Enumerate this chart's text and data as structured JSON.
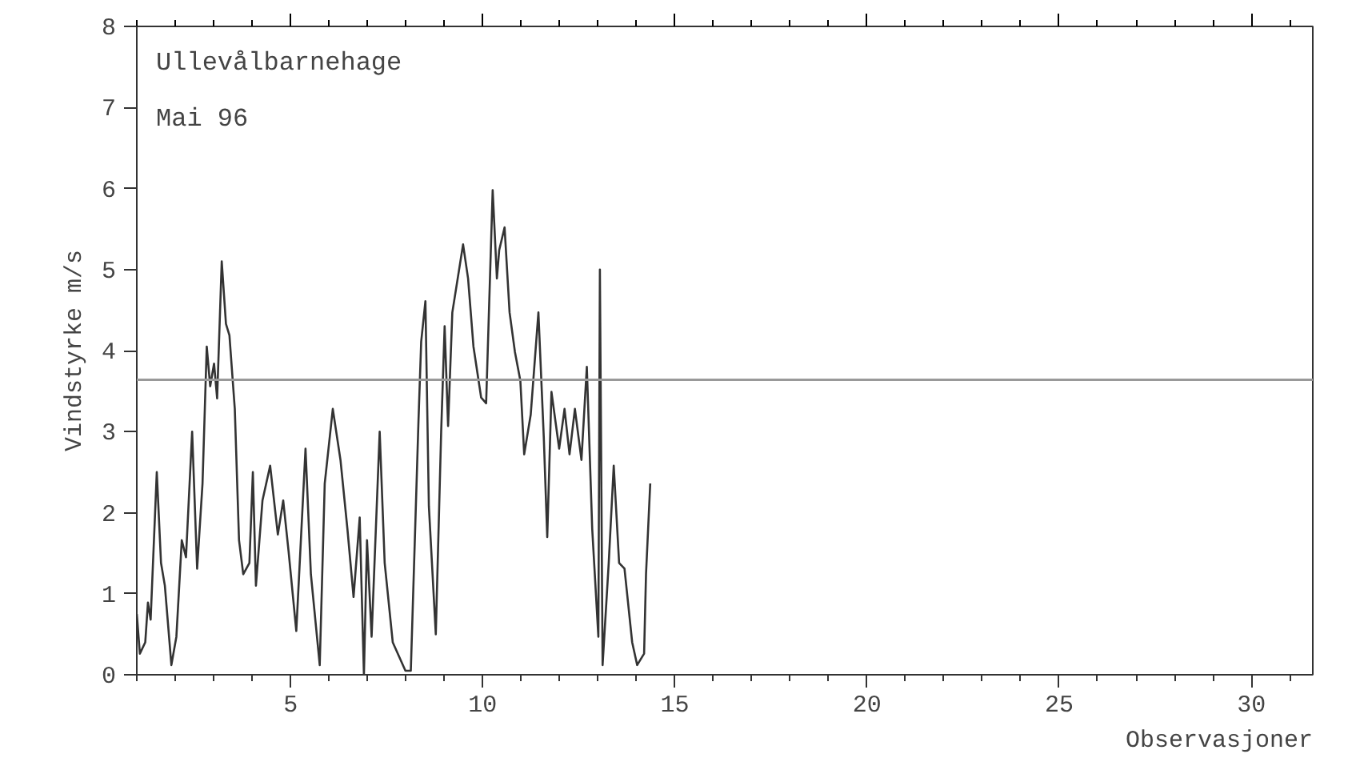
{
  "chart_data": {
    "type": "line",
    "xlabel": "Observasjoner",
    "ylabel": "Vindstyrke m/s",
    "annotations": [
      "Ullevålbarnehage",
      "Mai 96"
    ],
    "xlim": [
      1,
      31.6
    ],
    "ylim": [
      0,
      8
    ],
    "xticks": [
      5,
      10,
      15,
      20,
      25,
      30
    ],
    "yticks": [
      0,
      1,
      2,
      3,
      4,
      5,
      6,
      7,
      8
    ],
    "grid": false,
    "marker": "none",
    "line_style": "solid",
    "ref_lines": [
      {
        "axis": "y",
        "value": 3.64,
        "color": "#999999"
      }
    ],
    "series": [
      {
        "color": "#333333",
        "x": [
          1.0,
          1.08,
          1.22,
          1.29,
          1.36,
          1.52,
          1.63,
          1.73,
          1.9,
          2.03,
          2.17,
          2.28,
          2.44,
          2.57,
          2.71,
          2.82,
          2.91,
          3.01,
          3.09,
          3.21,
          3.32,
          3.41,
          3.55,
          3.66,
          3.77,
          3.93,
          4.02,
          4.1,
          4.27,
          4.47,
          4.67,
          4.81,
          4.95,
          5.15,
          5.39,
          5.53,
          5.76,
          5.89,
          6.1,
          6.3,
          6.48,
          6.64,
          6.8,
          6.91,
          6.99,
          7.11,
          7.32,
          7.45,
          7.66,
          7.99,
          8.13,
          8.33,
          8.4,
          8.51,
          8.6,
          8.78,
          8.92,
          9.01,
          9.1,
          9.21,
          9.49,
          9.62,
          9.76,
          9.96,
          10.09,
          10.26,
          10.37,
          10.43,
          10.57,
          10.7,
          10.84,
          10.98,
          11.08,
          11.25,
          11.45,
          11.59,
          11.68,
          11.79,
          11.99,
          12.13,
          12.26,
          12.4,
          12.57,
          12.71,
          12.85,
          13.01,
          13.05,
          13.12,
          13.28,
          13.41,
          13.55,
          13.69,
          13.89,
          14.02,
          14.2,
          14.25,
          14.36
        ],
        "values": [
          0.75,
          0.26,
          0.4,
          0.89,
          0.68,
          2.5,
          1.38,
          1.1,
          0.12,
          0.47,
          1.66,
          1.45,
          3.0,
          1.31,
          2.36,
          4.05,
          3.56,
          3.84,
          3.41,
          5.1,
          4.33,
          4.19,
          3.28,
          1.66,
          1.24,
          1.38,
          2.5,
          1.1,
          2.15,
          2.58,
          1.73,
          2.15,
          1.52,
          0.54,
          2.79,
          1.24,
          0.12,
          2.36,
          3.28,
          2.65,
          1.8,
          0.96,
          1.94,
          0,
          1.66,
          0.47,
          3.0,
          1.38,
          0.4,
          0.05,
          0.05,
          3.14,
          4.11,
          4.61,
          2.08,
          0.5,
          3.0,
          4.3,
          3.07,
          4.47,
          5.31,
          4.89,
          4.05,
          3.42,
          3.35,
          5.98,
          4.89,
          5.24,
          5.52,
          4.47,
          3.98,
          3.63,
          2.72,
          3.21,
          4.47,
          2.93,
          1.7,
          3.49,
          2.79,
          3.28,
          2.72,
          3.28,
          2.65,
          3.8,
          1.8,
          0.47,
          5.0,
          0.12,
          1.38,
          2.58,
          1.38,
          1.31,
          0.4,
          0.12,
          0.26,
          1.24,
          2.36
        ]
      }
    ]
  }
}
